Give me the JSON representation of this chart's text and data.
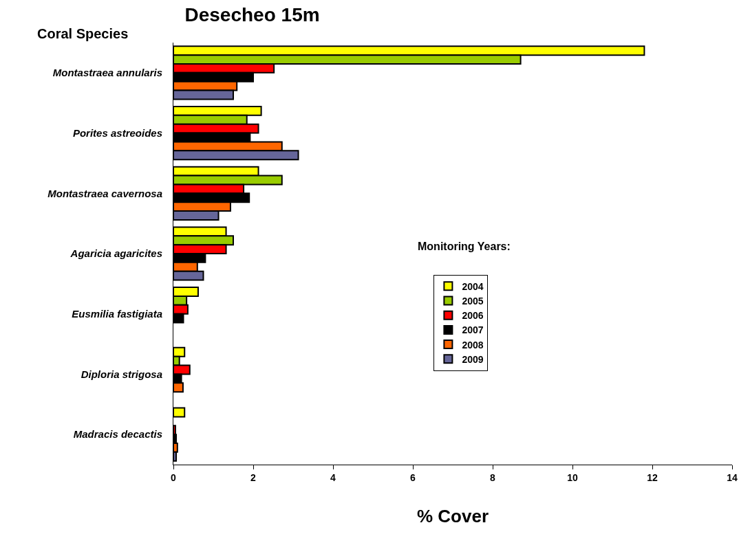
{
  "chart_data": {
    "type": "bar",
    "orientation": "horizontal",
    "title": "Desecheo 15m",
    "ylabel": "Coral Species",
    "xlabel": "% Cover",
    "legend_title": "Monitoring Years:",
    "categories": [
      "Montastraea annularis",
      "Porites astreoides",
      "Montastraea cavernosa",
      "Agaricia agaricites",
      "Eusmilia fastigiata",
      "Diploria strigosa",
      "Madracis decactis"
    ],
    "series": [
      {
        "name": "2004",
        "color": "#ffff00",
        "values": [
          11.8,
          2.2,
          2.13,
          1.32,
          0.62,
          0.28,
          0.28
        ]
      },
      {
        "name": "2005",
        "color": "#99cc00",
        "values": [
          8.7,
          1.84,
          2.72,
          1.5,
          0.33,
          0.15,
          null
        ]
      },
      {
        "name": "2006",
        "color": "#ff0000",
        "values": [
          2.52,
          2.13,
          1.76,
          1.32,
          0.36,
          0.41,
          0.05
        ]
      },
      {
        "name": "2007",
        "color": "#000000",
        "values": [
          2.0,
          1.92,
          1.9,
          0.8,
          0.25,
          0.2,
          0.07
        ]
      },
      {
        "name": "2008",
        "color": "#ff6600",
        "values": [
          1.59,
          2.72,
          1.43,
          0.6,
          null,
          0.24,
          0.1
        ]
      },
      {
        "name": "2009",
        "color": "#666699",
        "values": [
          1.5,
          3.13,
          1.13,
          0.75,
          null,
          null,
          0.07
        ]
      }
    ],
    "xlim": [
      0,
      14
    ],
    "xticks": [
      0,
      2,
      4,
      6,
      8,
      10,
      12,
      14
    ],
    "grid": false,
    "legend": "right"
  }
}
